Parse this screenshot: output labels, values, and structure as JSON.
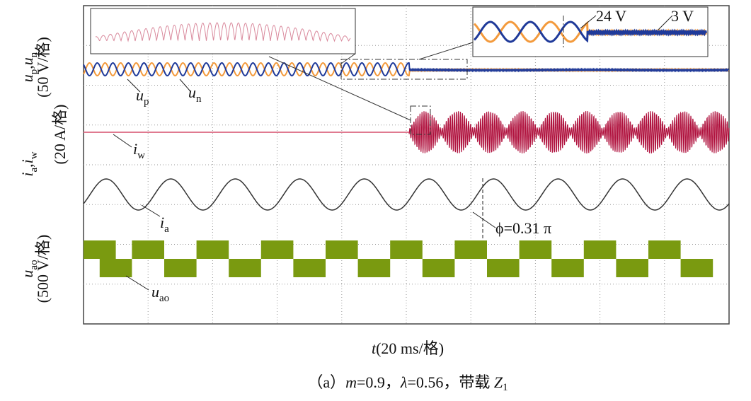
{
  "panels": [
    {
      "symbols": [
        {
          "letter": "u",
          "sub": "p"
        },
        {
          "letter": "u",
          "sub": "n"
        }
      ],
      "separator": ",",
      "scale": "(50 V/格)"
    },
    {
      "symbols": [
        {
          "letter": "i",
          "sub": "a"
        },
        {
          "letter": "i",
          "sub": "w"
        }
      ],
      "separator": ",",
      "scale": "(20 A/格)"
    },
    {
      "symbols": [
        {
          "letter": "u",
          "sub": "ao"
        }
      ],
      "scale": "(500 V/格)"
    }
  ],
  "signals": [
    {
      "letter": "u",
      "sub": "p"
    },
    {
      "letter": "u",
      "sub": "n"
    },
    {
      "letter": "i",
      "sub": "w"
    },
    {
      "letter": "i",
      "sub": "a"
    },
    {
      "letter": "u",
      "sub": "ao"
    }
  ],
  "annotations": {
    "ripple_before": "24 V",
    "ripple_after": "3 V",
    "phase": "ϕ=0.31 π"
  },
  "x_label": {
    "symbol": "t",
    "scale": "(20 ms/格)"
  },
  "caption": {
    "label": "（a）",
    "m_symbol": "m",
    "m_value": "=0.9，",
    "lambda_symbol": "λ",
    "lambda_value": "=0.56，",
    "load": "带载",
    "z_symbol": "Z",
    "z_sub": "1"
  }
}
